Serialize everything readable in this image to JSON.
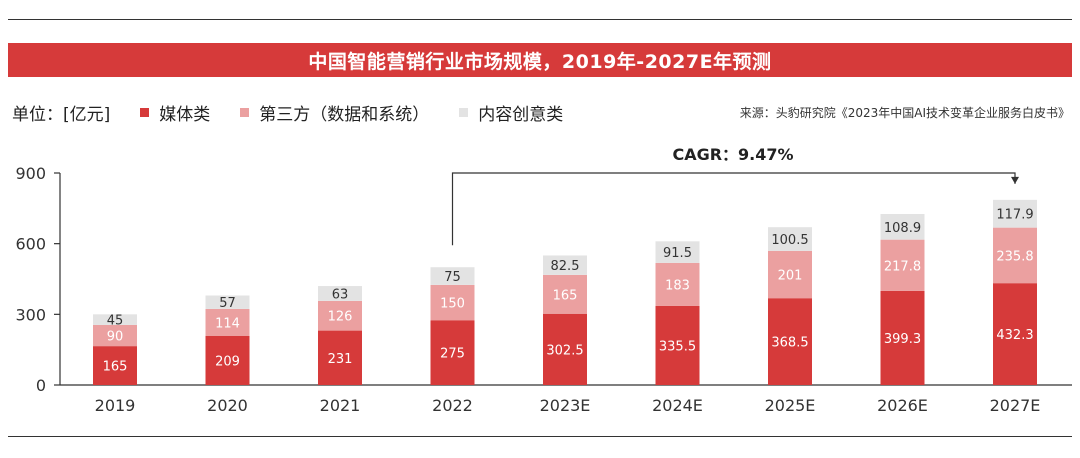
{
  "title": "中国智能营销行业市场规模，2019年-2027E年预测",
  "legend": {
    "unit": "单位：[亿元]",
    "items": [
      {
        "label": "媒体类",
        "color": "#d63a3a"
      },
      {
        "label": "第三方（数据和系统）",
        "color": "#eba0a0"
      },
      {
        "label": "内容创意类",
        "color": "#e3e3e3"
      }
    ]
  },
  "source": "来源：头豹研究院《2023年中国AI技术变革企业服务白皮书》",
  "chart_data": {
    "type": "bar",
    "stacked": true,
    "title": "中国智能营销行业市场规模，2019年-2027E年预测",
    "ylabel": "亿元",
    "ylim": [
      0,
      900
    ],
    "yticks": [
      0,
      300,
      600,
      900
    ],
    "categories": [
      "2019",
      "2020",
      "2021",
      "2022",
      "2023E",
      "2024E",
      "2025E",
      "2026E",
      "2027E"
    ],
    "series": [
      {
        "name": "媒体类",
        "color": "#d63a3a",
        "label_color": "#ffffff",
        "values": [
          165,
          209,
          231,
          275,
          302.5,
          335.5,
          368.5,
          399.3,
          432.3
        ],
        "labels": [
          "165",
          "209",
          "231",
          "275",
          "302.5",
          "335.5",
          "368.5",
          "399.3",
          "432.3"
        ]
      },
      {
        "name": "第三方（数据和系统）",
        "color": "#eba0a0",
        "label_color": "#ffffff",
        "values": [
          90,
          114,
          126,
          150,
          165,
          183,
          201,
          217.8,
          235.8
        ],
        "labels": [
          "90",
          "114",
          "126",
          "150",
          "165",
          "183",
          "201",
          "217.8",
          "235.8"
        ]
      },
      {
        "name": "内容创意类",
        "color": "#e3e3e3",
        "label_color": "#333333",
        "values": [
          45,
          57,
          63,
          75,
          82.5,
          91.5,
          100.5,
          108.9,
          117.9
        ],
        "labels": [
          "45",
          "57",
          "63",
          "75",
          "82.5",
          "91.5",
          "100.5",
          "108.9",
          "117.9"
        ]
      }
    ],
    "annotation": {
      "text": "CAGR：9.47%",
      "from": "2022",
      "to": "2027E"
    }
  }
}
